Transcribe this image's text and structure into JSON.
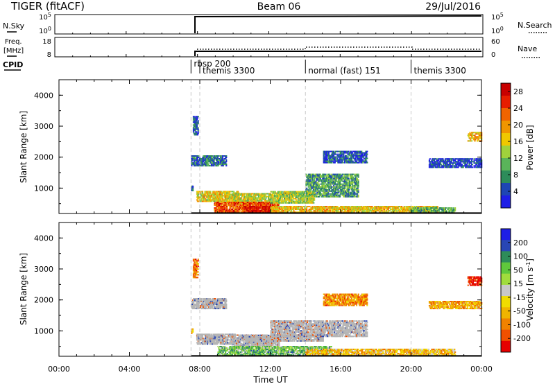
{
  "header": {
    "title": "TIGER (fitACF)",
    "beam": "Beam 06",
    "date": "29/Jul/2016"
  },
  "labels": {
    "nsky": "N.Sky",
    "nsearch": "N.Search",
    "freq_line1": "Freq.",
    "freq_line2": "[MHz]",
    "nave": "Nave",
    "cpid": "CPID"
  },
  "ticks": {
    "nsky_left": [
      "10^5",
      "10^0"
    ],
    "nsearch_right": [
      "10^5",
      "10^0"
    ],
    "freq_left": [
      "18",
      "8"
    ],
    "nave_right": [
      "60",
      "0"
    ]
  },
  "cpid_segments": [
    {
      "label": "rbsp 200",
      "start_h": 7.5,
      "end_h": 8.0
    },
    {
      "label": "themis 3300",
      "start_h": 8.0,
      "end_h": 14.0
    },
    {
      "label": "normal (fast) 151",
      "start_h": 14.0,
      "end_h": 20.0
    },
    {
      "label": "themis 3300",
      "start_h": 20.0,
      "end_h": 24.0
    }
  ],
  "colors": {
    "power": [
      "#1e1ee6",
      "#1e46b4",
      "#2d8c5a",
      "#5ab45a",
      "#a0d23c",
      "#f0c800",
      "#f09600",
      "#f06400",
      "#e61e00",
      "#c80000"
    ],
    "velocity": [
      "#1e1ee6",
      "#2846b4",
      "#2d8c5a",
      "#5fc83c",
      "#a0dc3c",
      "#c8c8c8",
      "#f0dc00",
      "#f0b400",
      "#f08200",
      "#f05000",
      "#e60000"
    ],
    "ground_scatter": "#b4b4b4"
  },
  "chart_data": [
    {
      "type": "heatmap",
      "name": "power",
      "xlabel": "",
      "ylabel": "Slant Range [km]",
      "x_range_hours": [
        0,
        24
      ],
      "ylim": [
        180,
        4500
      ],
      "yticks": [
        "1000",
        "2000",
        "3000",
        "4000"
      ],
      "colorbar": {
        "label": "Power [dB]",
        "range": [
          0,
          30
        ],
        "ticks": [
          "4",
          "8",
          "12",
          "16",
          "20",
          "24",
          "28"
        ]
      },
      "regions": [
        {
          "t": [
            7.6,
            7.9
          ],
          "r": [
            2700,
            3300
          ],
          "level": 0.15
        },
        {
          "t": [
            7.5,
            7.6
          ],
          "r": [
            900,
            1050
          ],
          "level": 0.2
        },
        {
          "t": [
            7.5,
            9.5
          ],
          "r": [
            1700,
            2050
          ],
          "level": 0.2
        },
        {
          "t": [
            7.8,
            10.2
          ],
          "r": [
            550,
            900
          ],
          "level": 0.55
        },
        {
          "t": [
            9.8,
            12.0
          ],
          "r": [
            480,
            800
          ],
          "level": 0.5
        },
        {
          "t": [
            8.8,
            12.5
          ],
          "r": [
            200,
            560
          ],
          "level": 0.78
        },
        {
          "t": [
            10.5,
            12.4
          ],
          "r": [
            200,
            420
          ],
          "level": 0.92
        },
        {
          "t": [
            12.0,
            15.5
          ],
          "r": [
            200,
            420
          ],
          "level": 0.6
        },
        {
          "t": [
            14.0,
            17.0
          ],
          "r": [
            700,
            1450
          ],
          "level": 0.3
        },
        {
          "t": [
            12.0,
            14.5
          ],
          "r": [
            500,
            900
          ],
          "level": 0.45
        },
        {
          "t": [
            15.0,
            17.5
          ],
          "r": [
            1800,
            2200
          ],
          "level": 0.15
        },
        {
          "t": [
            15.5,
            21.5
          ],
          "r": [
            200,
            420
          ],
          "level": 0.55
        },
        {
          "t": [
            20.0,
            22.5
          ],
          "r": [
            200,
            380
          ],
          "level": 0.35
        },
        {
          "t": [
            21.0,
            24.0
          ],
          "r": [
            1650,
            1950
          ],
          "level": 0.1
        },
        {
          "t": [
            23.2,
            24.0
          ],
          "r": [
            2500,
            2800
          ],
          "level": 0.62
        }
      ]
    },
    {
      "type": "heatmap",
      "name": "velocity",
      "xlabel": "Time UT",
      "ylabel": "Slant Range [km]",
      "x_range_hours": [
        0,
        24
      ],
      "ylim": [
        180,
        4500
      ],
      "yticks": [
        "1000",
        "2000",
        "3000",
        "4000"
      ],
      "xticks": [
        "00:00",
        "04:00",
        "08:00",
        "12:00",
        "16:00",
        "20:00",
        "00:00"
      ],
      "colorbar": {
        "label": "Velocity [m s-1]",
        "range": [
          -250,
          250
        ],
        "ticks": [
          "200",
          "100",
          "50",
          "15",
          "-15",
          "-50",
          "-100",
          "-200"
        ]
      },
      "regions": [
        {
          "t": [
            7.6,
            7.9
          ],
          "r": [
            2700,
            3300
          ],
          "level": 0.8
        },
        {
          "t": [
            7.5,
            7.6
          ],
          "r": [
            900,
            1050
          ],
          "level": 0.75
        },
        {
          "t": [
            7.5,
            9.5
          ],
          "r": [
            1700,
            2050
          ],
          "level": 0.5
        },
        {
          "t": [
            7.8,
            10.0
          ],
          "r": [
            550,
            900
          ],
          "level": 0.5
        },
        {
          "t": [
            9.8,
            12.5
          ],
          "r": [
            480,
            850
          ],
          "level": 0.5
        },
        {
          "t": [
            10.5,
            15.0
          ],
          "r": [
            650,
            850
          ],
          "level": 0.5
        },
        {
          "t": [
            12.0,
            17.5
          ],
          "r": [
            800,
            1300
          ],
          "level": 0.5
        },
        {
          "t": [
            9.0,
            15.5
          ],
          "r": [
            200,
            480
          ],
          "level": 0.35
        },
        {
          "t": [
            14.0,
            22.5
          ],
          "r": [
            200,
            420
          ],
          "level": 0.65
        },
        {
          "t": [
            15.0,
            17.5
          ],
          "r": [
            1800,
            2200
          ],
          "level": 0.75
        },
        {
          "t": [
            21.0,
            24.0
          ],
          "r": [
            1700,
            1950
          ],
          "level": 0.7
        },
        {
          "t": [
            23.2,
            24.0
          ],
          "r": [
            2450,
            2750
          ],
          "level": 0.95
        }
      ]
    }
  ]
}
